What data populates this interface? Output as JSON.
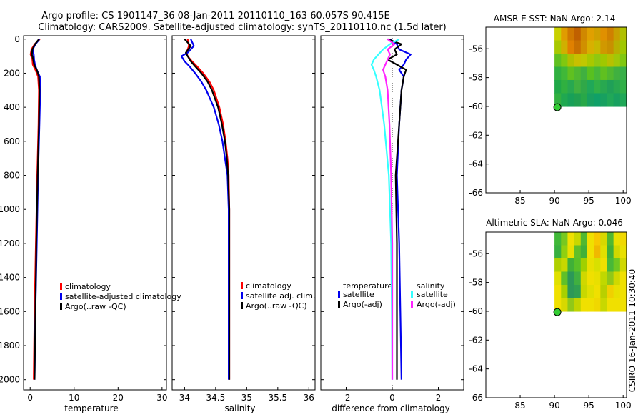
{
  "title_line1": "Argo profile: CS 1901147_36 08-Jan-2011 20110110_163 60.057S 90.415E",
  "title_line2": "Climatology: CARS2009. Satellite-adjusted climatology: synTS_20110110.nc (1.5d later)",
  "side_stamp": "CSIRO 16-Jan-2011 10:30:40",
  "colors": {
    "red": "#ff0000",
    "blue": "#0000ee",
    "black": "#000000",
    "cyan": "#33ffff",
    "magenta": "#ff22ff"
  },
  "chart_data": [
    {
      "type": "line",
      "id": "temperature",
      "xlabel": "temperature",
      "ylabel": "",
      "xlim": [
        -1.5,
        31
      ],
      "ylim": [
        2060,
        -20
      ],
      "xticks": [
        0,
        10,
        20,
        30
      ],
      "yticks": [
        0,
        200,
        400,
        600,
        800,
        1000,
        1200,
        1400,
        1600,
        1800,
        2000
      ],
      "legend": [
        "climatology",
        "satellite-adjusted climatology",
        "Argo(..raw -QC)"
      ],
      "series": [
        {
          "name": "climatology",
          "color": "red",
          "depth": [
            0,
            30,
            60,
            90,
            120,
            150,
            180,
            220,
            300,
            500,
            800,
            1200,
            1600,
            2000
          ],
          "values": [
            2.2,
            1.0,
            0.3,
            0.1,
            0.5,
            0.6,
            1.2,
            1.8,
            2.0,
            1.9,
            1.6,
            1.3,
            1.0,
            0.8
          ]
        },
        {
          "name": "satellite-adjusted climatology",
          "color": "blue",
          "depth": [
            0,
            30,
            60,
            90,
            120,
            150,
            180,
            220,
            300,
            500,
            800,
            1200,
            1600,
            2000
          ],
          "values": [
            2.1,
            1.2,
            0.6,
            0.8,
            0.9,
            1.1,
            1.5,
            2.2,
            2.3,
            2.1,
            1.8,
            1.5,
            1.2,
            1.0
          ]
        },
        {
          "name": "Argo(..raw -QC)",
          "color": "black",
          "depth": [
            0,
            30,
            60,
            90,
            120,
            150,
            180,
            220,
            300,
            500,
            800,
            1200,
            1600,
            2000
          ],
          "values": [
            2.0,
            1.1,
            0.5,
            0.4,
            0.7,
            0.9,
            1.5,
            2.0,
            2.1,
            2.0,
            1.7,
            1.4,
            1.2,
            1.0
          ]
        }
      ]
    },
    {
      "type": "line",
      "id": "salinity",
      "xlabel": "salinity",
      "ylabel": "",
      "xlim": [
        33.8,
        36.1
      ],
      "ylim": [
        2060,
        -20
      ],
      "xticks": [
        34,
        34.5,
        35,
        35.5,
        36
      ],
      "legend": [
        "climatology",
        "satellite adj. clim.",
        "Argo(..raw -QC)"
      ],
      "series": [
        {
          "name": "climatology",
          "color": "red",
          "depth": [
            0,
            40,
            80,
            100,
            130,
            160,
            200,
            250,
            300,
            400,
            500,
            600,
            700,
            800,
            1000,
            1200,
            1600,
            2000
          ],
          "values": [
            34.05,
            34.07,
            34.03,
            34.05,
            34.12,
            34.2,
            34.3,
            34.4,
            34.47,
            34.56,
            34.62,
            34.66,
            34.69,
            34.71,
            34.72,
            34.72,
            34.72,
            34.72
          ]
        },
        {
          "name": "satellite adj. clim.",
          "color": "blue",
          "depth": [
            0,
            40,
            80,
            100,
            130,
            160,
            200,
            250,
            300,
            400,
            500,
            600,
            700,
            800,
            1000,
            1200,
            1600,
            2000
          ],
          "values": [
            34.1,
            34.15,
            34.05,
            33.95,
            34.0,
            34.08,
            34.17,
            34.27,
            34.35,
            34.47,
            34.55,
            34.61,
            34.65,
            34.69,
            34.71,
            34.71,
            34.71,
            34.71
          ]
        },
        {
          "name": "Argo(..raw -QC)",
          "color": "black",
          "depth": [
            0,
            40,
            80,
            100,
            130,
            160,
            200,
            250,
            300,
            400,
            500,
            600,
            700,
            800,
            1000,
            1200,
            1600,
            2000
          ],
          "values": [
            34.0,
            34.1,
            34.02,
            34.05,
            34.1,
            34.17,
            34.27,
            34.37,
            34.44,
            34.54,
            34.6,
            34.65,
            34.68,
            34.7,
            34.72,
            34.72,
            34.72,
            34.72
          ]
        }
      ]
    },
    {
      "type": "line",
      "id": "difference",
      "xlabel": "difference from climatology",
      "ylabel": "",
      "xlim": [
        -3.1,
        3.1
      ],
      "ylim": [
        2060,
        -20
      ],
      "xticks": [
        -2,
        0,
        2
      ],
      "legend_temperature_title": "temperature",
      "legend_salinity_title": "salinity",
      "legend_temperature": [
        "satellite",
        "Argo(-adj)"
      ],
      "legend_salinity": [
        "satellite",
        "Argo(-adj)"
      ],
      "series": [
        {
          "name": "temperature satellite",
          "color": "blue",
          "depth": [
            0,
            30,
            60,
            90,
            120,
            150,
            180,
            220,
            300,
            500,
            800,
            1200,
            1600,
            2000
          ],
          "values": [
            -0.1,
            0.2,
            0.3,
            0.8,
            0.6,
            0.5,
            0.3,
            0.5,
            0.4,
            0.3,
            0.2,
            0.3,
            0.35,
            0.4
          ]
        },
        {
          "name": "temperature Argo(-adj)",
          "color": "black",
          "depth": [
            0,
            30,
            60,
            90,
            120,
            150,
            180,
            220,
            300,
            500,
            800,
            1200,
            1600,
            2000
          ],
          "values": [
            -0.2,
            0.4,
            0.1,
            0.2,
            -0.2,
            0.2,
            0.6,
            0.5,
            0.4,
            0.3,
            0.15,
            0.2,
            0.2,
            0.2
          ]
        },
        {
          "name": "salinity satellite",
          "color": "cyan",
          "depth": [
            0,
            30,
            60,
            90,
            120,
            150,
            180,
            220,
            300,
            500,
            800,
            1200,
            1600,
            2000
          ],
          "values": [
            0.3,
            -0.1,
            -0.4,
            -0.6,
            -0.8,
            -0.9,
            -0.8,
            -0.7,
            -0.55,
            -0.35,
            -0.15,
            -0.05,
            -0.02,
            0.0
          ]
        },
        {
          "name": "salinity Argo(-adj)",
          "color": "magenta",
          "depth": [
            0,
            30,
            60,
            90,
            120,
            150,
            180,
            220,
            300,
            500,
            800,
            1200,
            1600,
            2000
          ],
          "values": [
            -0.2,
            0.1,
            -0.2,
            -0.1,
            -0.2,
            -0.3,
            -0.4,
            -0.3,
            -0.2,
            -0.12,
            -0.05,
            0.0,
            0.0,
            0.0
          ]
        }
      ]
    },
    {
      "type": "heatmap",
      "id": "sst_map",
      "title": "AMSR-E SST: NaN Argo: 2.14",
      "xlim": [
        80,
        100.5
      ],
      "ylim": [
        -66,
        -54.5
      ],
      "xticks": [
        85,
        90,
        95,
        100
      ],
      "yticks": [
        -56,
        -58,
        -60,
        -62,
        -64,
        -66
      ],
      "data_extent": {
        "lon": [
          90,
          100.5
        ],
        "lat": [
          -60,
          -54.5
        ]
      },
      "argo_point": {
        "lon": 90.415,
        "lat": -60.057
      },
      "grid": [
        [
          "#c8d000",
          "#e09c00",
          "#d07800",
          "#c06000",
          "#d08800",
          "#e0a000",
          "#d0a000",
          "#e09000",
          "#d08000",
          "#c8a000",
          "#b0c000"
        ],
        [
          "#a8c800",
          "#d0b000",
          "#e08000",
          "#c87000",
          "#d09000",
          "#d8b000",
          "#c8b800",
          "#d09800",
          "#c89000",
          "#b8b000",
          "#a0c800"
        ],
        [
          "#60c020",
          "#80c810",
          "#b0c000",
          "#c8c000",
          "#c0c800",
          "#a8c800",
          "#90c810",
          "#a0c800",
          "#b8c000",
          "#a0c808",
          "#80c810"
        ],
        [
          "#30b040",
          "#40b838",
          "#60c020",
          "#50b830",
          "#40b040",
          "#58c020",
          "#48b838",
          "#60c020",
          "#50b830",
          "#40b040",
          "#38b048"
        ],
        [
          "#20a848",
          "#30b040",
          "#28a850",
          "#40b040",
          "#30a848",
          "#20a858",
          "#30b048",
          "#28a850",
          "#20a058",
          "#28a850",
          "#30b048"
        ],
        [
          "#30b040",
          "#20a850",
          "#18a058",
          "#20a050",
          "#28a848",
          "#18a060",
          "#10a068",
          "#18a060",
          "#20a858",
          "#18a060",
          "#20a858"
        ]
      ]
    },
    {
      "type": "heatmap",
      "id": "sla_map",
      "title": "Altimetric SLA: NaN Argo: 0.046",
      "xlim": [
        80,
        100.5
      ],
      "ylim": [
        -66,
        -54.5
      ],
      "xticks": [
        85,
        90,
        95,
        100
      ],
      "yticks": [
        -56,
        -58,
        -60,
        -62,
        -64,
        -66
      ],
      "data_extent": {
        "lon": [
          90,
          100.5
        ],
        "lat": [
          -60,
          -54.5
        ]
      },
      "argo_point": {
        "lon": 90.415,
        "lat": -60.057
      },
      "grid": [
        [
          "#40b838",
          "#78c820",
          "#f0e000",
          "#c8d800",
          "#50b830",
          "#f0e000",
          "#f8c800",
          "#d8d800",
          "#50b830",
          "#e8e000",
          "#f0d800"
        ],
        [
          "#38b040",
          "#90d010",
          "#e8e000",
          "#60c028",
          "#40b038",
          "#f0e000",
          "#f0b800",
          "#e0e000",
          "#40b038",
          "#d0d800",
          "#e8e000"
        ],
        [
          "#b0d000",
          "#c8d800",
          "#40b038",
          "#58c028",
          "#a0d000",
          "#e8e000",
          "#d8e000",
          "#f0e000",
          "#48b838",
          "#70c820",
          "#d0d800"
        ],
        [
          "#e0e000",
          "#60c028",
          "#2c9858",
          "#40b040",
          "#d0d800",
          "#f0e000",
          "#e8e000",
          "#c0d800",
          "#90c818",
          "#d0d800",
          "#f0e000"
        ],
        [
          "#f0e000",
          "#a8d000",
          "#2c9858",
          "#30a050",
          "#c8d800",
          "#e0e000",
          "#f0e000",
          "#b8d000",
          "#f0d000",
          "#e8e000",
          "#f0e000"
        ],
        [
          "#f0e000",
          "#d8d800",
          "#90c818",
          "#c0d400",
          "#f0e000",
          "#f0e000",
          "#f0d800",
          "#c8d800",
          "#f0e000",
          "#f0e000",
          "#f0e000"
        ]
      ]
    }
  ]
}
